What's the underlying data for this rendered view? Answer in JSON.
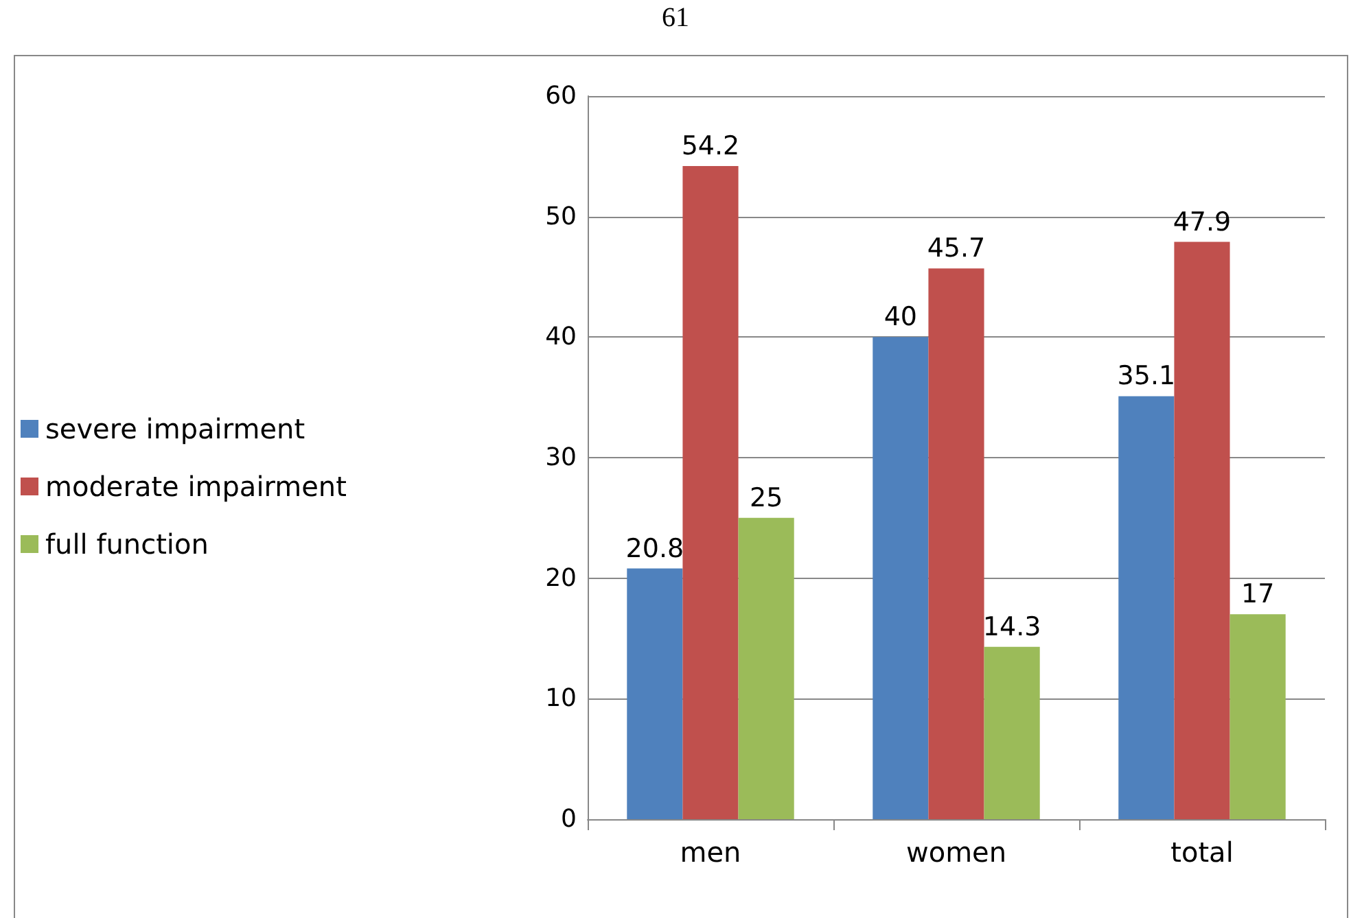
{
  "chart_data": {
    "type": "bar",
    "categories": [
      "men",
      "women",
      "total"
    ],
    "series": [
      {
        "name": "severe impairment",
        "color": "#4f81bd",
        "values": [
          20.8,
          40,
          35.1
        ]
      },
      {
        "name": "moderate impairment",
        "color": "#c0504d",
        "values": [
          54.2,
          45.7,
          47.9
        ]
      },
      {
        "name": "full function",
        "color": "#9bbb59",
        "values": [
          25,
          14.3,
          17
        ]
      }
    ],
    "ylim": [
      0,
      60
    ],
    "yticks": [
      0,
      10,
      20,
      30,
      40,
      50,
      60
    ],
    "grid": "y",
    "legend": "left",
    "data_labels": true,
    "annotations": [
      "61"
    ]
  }
}
